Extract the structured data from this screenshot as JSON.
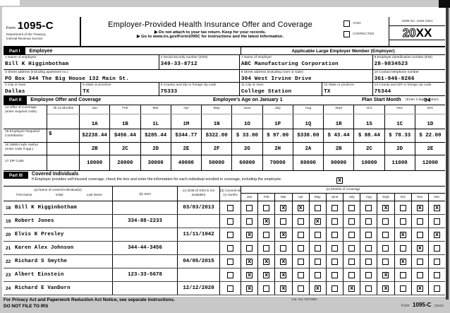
{
  "header": {
    "form_label": "Form",
    "form_number": "1095-C",
    "agency_line1": "Department of the Treasury",
    "agency_line2": "Internal Revenue Service",
    "title": "Employer-Provided Health Insurance Offer and Coverage",
    "instruction1": "▶ Do not attach to your tax return. Keep for your records.",
    "instruction2": "▶ Go to www.irs.gov/Form1095C for instructions and the latest information.",
    "void_label": "VOID",
    "corrected_label": "CORRECTED",
    "omb": "OMB No. 1545-2251",
    "year_outline": "20",
    "year_bold": "XX"
  },
  "part1": {
    "badge": "Part I",
    "title": "Employee",
    "employer_title": "Applicable Large Employer Member (Employer)",
    "f1_label": "1 Name of employee",
    "f1_value": "Bill K Higginbotham",
    "f2_label": "2 Social security number (SSN)",
    "f2_value": "349-33-8712",
    "f3_label": "3 Street address (including apartment no.)",
    "f3_value": "PO Box 344 The Big House 132 Main St.",
    "f4_label": "4 City or town",
    "f4_value": "Dallas",
    "f5_label": "5 State or province",
    "f5_value": "TX",
    "f6_label": "6 Country and Zip or foreign zip code",
    "f6_value": "75333",
    "f7_label": "7 Name of employer",
    "f7_value": "ABC Manufacturing Corporation",
    "f8_label": "8 Employer identification number (EIN)",
    "f8_value": "28-9834523",
    "f9_label": "9 Street address (including room or suite)",
    "f9_value": "304 West Irvine Drive",
    "f10_label": "10 Contact telephone number",
    "f10_value": "361-946-8266",
    "f11_label": "11 City or town",
    "f11_value": "College Station",
    "f12_label": "12 State or province",
    "f12_value": "TX",
    "f13_label": "13 County and ZIP or foreign zip code",
    "f13_value": "75344"
  },
  "part2": {
    "badge": "Part II",
    "title": "Employee Offer and Coverage",
    "age_title": "Employee's Age on January 1",
    "plan_start_label": "Plan Start Month",
    "plan_start_note": "(Enter 2-digit number):",
    "plan_start_value": "04",
    "all12_header": "All 12 Months",
    "months": [
      "Jan",
      "Feb",
      "Mar",
      "Apr",
      "May",
      "June",
      "July",
      "Aug",
      "Sept",
      "Oct",
      "Nov",
      "Dec"
    ],
    "row14": {
      "label": "14 Offer of Coverage (enter required code)",
      "all12": "",
      "values": [
        "1A",
        "1B",
        "1L",
        "1M",
        "1N",
        "1O",
        "1P",
        "1Q",
        "1R",
        "1S",
        "1C",
        "1D"
      ]
    },
    "row15": {
      "label": "15 Employee Required Contribution",
      "all12": "$",
      "values": [
        "$2238.44",
        "$456.44",
        "$285.44",
        "$344.77",
        "$322.00",
        "$ 33.00",
        "$ 97.00",
        "$338.00",
        "$ 43.44",
        "$ 88.44",
        "$ 78.33",
        "$ 22.00"
      ]
    },
    "row16": {
      "label": "16 4980H safe Harbor (enter code if app.)",
      "all12": "",
      "values": [
        "2B",
        "2C",
        "2D",
        "2E",
        "2F",
        "2G",
        "2H",
        "2A",
        "2B",
        "2C",
        "2D",
        "2E"
      ]
    },
    "row17": {
      "label": "17 ZIP Code",
      "all12": "",
      "values": [
        "10000",
        "20000",
        "30000",
        "40000",
        "50000",
        "60000",
        "70000",
        "80000",
        "90000",
        "10000",
        "11000",
        "12000"
      ]
    }
  },
  "part3": {
    "badge": "Part III",
    "title": "Covered Individuals",
    "instruction": "If Employer provides self-insured coverage, check the box and enter the information for each individual enrolled in coverage, including the employee.",
    "instruction_checked": true,
    "checked_glyph": "X",
    "col_a": "(a) Name of covered individual(s)",
    "col_a_sub1": "First Name",
    "col_a_sub2": "Initial",
    "col_a_sub3": "Last Name",
    "col_b": "(b) SSN",
    "col_c": "(c) DOB (If SSN is not available)",
    "col_d": "(d) Covered all 12 months",
    "col_e": "(e) Months of Coverage",
    "months": [
      "Jan",
      "Feb",
      "Mar",
      "Apr",
      "May",
      "June",
      "July",
      "Aug",
      "Sept",
      "Oct",
      "Nov",
      "Dec"
    ],
    "rows": [
      {
        "num": "18",
        "name": "Bill K Higginbotham",
        "ssn": "",
        "dob": "03/03/2013",
        "all12": false,
        "months": [
          false,
          false,
          true,
          true,
          false,
          false,
          false,
          false,
          true,
          false,
          true,
          true
        ]
      },
      {
        "num": "19",
        "name": "Robert Jones",
        "ssn": "334-88-2233",
        "dob": "",
        "all12": false,
        "months": [
          false,
          true,
          false,
          false,
          true,
          false,
          false,
          false,
          false,
          false,
          false,
          false
        ]
      },
      {
        "num": "20",
        "name": "Elvis K Presley",
        "ssn": "",
        "dob": "11/11/1942",
        "all12": false,
        "months": [
          true,
          false,
          true,
          false,
          false,
          false,
          false,
          false,
          false,
          true,
          false,
          true
        ]
      },
      {
        "num": "21",
        "name": "Karen Alex Johnson",
        "ssn": "344-44-3456",
        "dob": "",
        "all12": false,
        "months": [
          false,
          false,
          false,
          false,
          false,
          false,
          false,
          false,
          false,
          false,
          true,
          false
        ]
      },
      {
        "num": "22",
        "name": "Richard S Smythe",
        "ssn": "",
        "dob": "04/05/2015",
        "all12": false,
        "months": [
          true,
          true,
          true,
          false,
          false,
          false,
          false,
          false,
          false,
          true,
          false,
          false
        ]
      },
      {
        "num": "23",
        "name": "Albert Einstein",
        "ssn": "123-33-5678",
        "dob": "",
        "all12": false,
        "months": [
          true,
          true,
          true,
          false,
          false,
          false,
          false,
          false,
          true,
          false,
          false,
          false
        ]
      },
      {
        "num": "24",
        "name": "Richard E VanDorn",
        "ssn": "",
        "dob": "12/12/2020",
        "all12": false,
        "months": [
          true,
          false,
          true,
          false,
          true,
          false,
          true,
          false,
          true,
          false,
          true,
          false
        ]
      }
    ]
  },
  "footer": {
    "privacy": "For Privacy Act and Paperwork Reduction Act Notice, see separate instructions.",
    "do_not_file": "DO NOT FILE TO IRS",
    "cat_no": "Cat. No. 60705M",
    "form_label": "Form",
    "form_number": "1095-C",
    "form_year": "(2022)"
  }
}
